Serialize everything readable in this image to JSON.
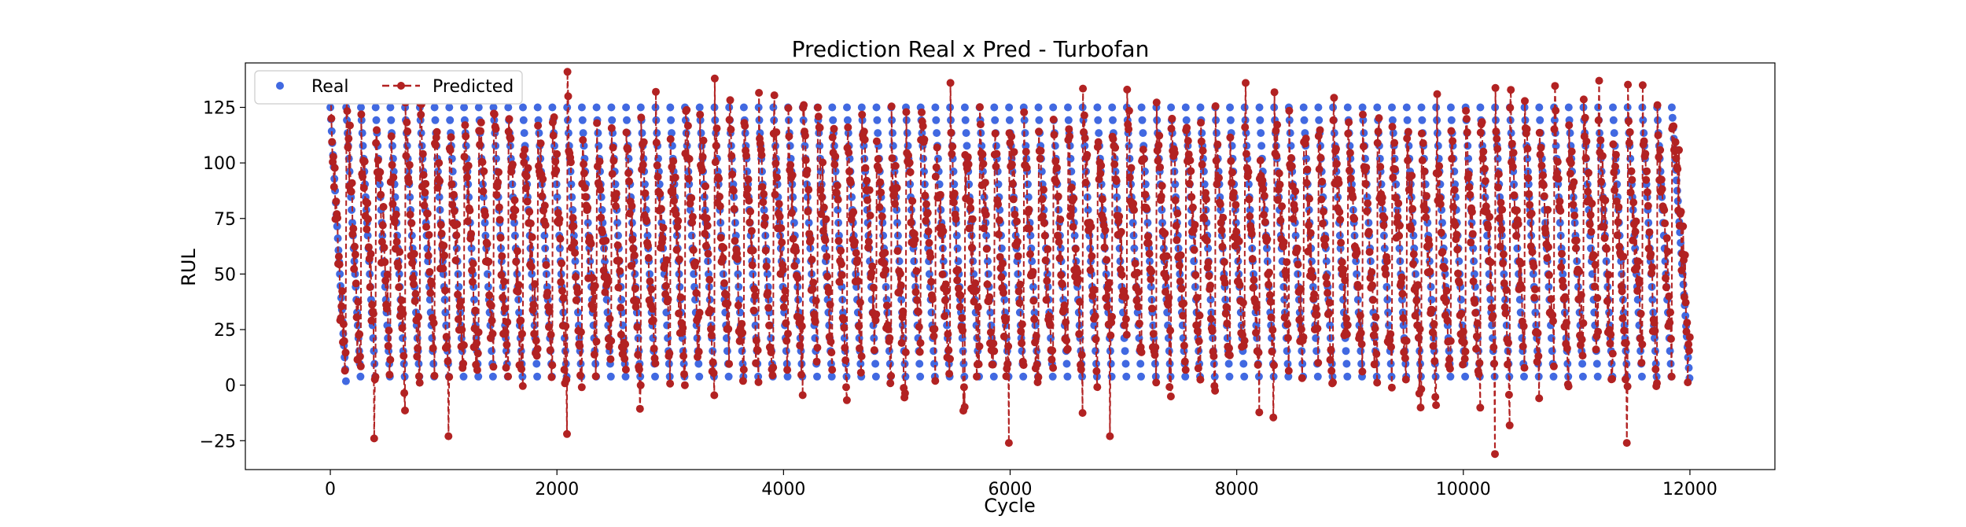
{
  "chart_data": {
    "type": "line",
    "title": "Prediction Real x Pred - Turbofan",
    "xlabel": "Cycle",
    "ylabel": "RUL",
    "xlim": [
      -750,
      12750
    ],
    "ylim": [
      -38,
      145
    ],
    "xticks": [
      0,
      2000,
      4000,
      6000,
      8000,
      10000,
      12000
    ],
    "xtick_labels": [
      "0",
      "2000",
      "4000",
      "6000",
      "8000",
      "10000",
      "12000"
    ],
    "yticks": [
      -25,
      0,
      25,
      50,
      75,
      100,
      125
    ],
    "ytick_labels": [
      "−25",
      "0",
      "25",
      "50",
      "75",
      "100",
      "125"
    ],
    "grid": false,
    "legend": {
      "placement": "top-left",
      "columns": 2
    },
    "series": [
      {
        "name": "Real",
        "style": "markers",
        "color": "#4169e1",
        "description": "sawtooth of RUL: each engine unit starts at 125 (capped) and decreases linearly to 0",
        "unit_boundaries": [
          0,
          140,
          270,
          400,
          530,
          660,
          790,
          920,
          1050,
          1180,
          1310,
          1440,
          1570,
          1700,
          1830,
          1960,
          2090,
          2220,
          2350,
          2480,
          2610,
          2740,
          2870,
          3000,
          3130,
          3260,
          3390,
          3520,
          3650,
          3780,
          3910,
          4040,
          4170,
          4300,
          4430,
          4560,
          4690,
          4820,
          4950,
          5080,
          5210,
          5340,
          5470,
          5600,
          5730,
          5860,
          5990,
          6120,
          6250,
          6380,
          6510,
          6640,
          6770,
          6900,
          7030,
          7160,
          7290,
          7420,
          7550,
          7680,
          7810,
          7940,
          8070,
          8200,
          8330,
          8460,
          8590,
          8720,
          8850,
          8980,
          9110,
          9240,
          9370,
          9500,
          9630,
          9760,
          9890,
          10020,
          10150,
          10280,
          10410,
          10540,
          10670,
          10800,
          10930,
          11060,
          11190,
          11320,
          11450,
          11580,
          11710,
          11840,
          12000
        ],
        "y_max": 125,
        "y_min": 0
      },
      {
        "name": "Predicted",
        "style": "dashed-line-with-markers",
        "color": "#b22222",
        "description": "noisy predictions following each unit's decline",
        "extrema": [
          {
            "x": 40,
            "y": 120
          },
          {
            "x": 380,
            "y": -24
          },
          {
            "x": 1120,
            "y": -23
          },
          {
            "x": 2100,
            "y": 130
          },
          {
            "x": 2100,
            "y": -22
          },
          {
            "x": 2900,
            "y": 132
          },
          {
            "x": 3380,
            "y": 138
          },
          {
            "x": 5510,
            "y": 136
          },
          {
            "x": 6000,
            "y": -26
          },
          {
            "x": 6900,
            "y": -23
          },
          {
            "x": 7000,
            "y": 133
          },
          {
            "x": 8000,
            "y": 136
          },
          {
            "x": 9760,
            "y": 131
          },
          {
            "x": 10250,
            "y": -31
          },
          {
            "x": 11130,
            "y": 137
          },
          {
            "x": 11520,
            "y": -26
          },
          {
            "x": 11650,
            "y": 135
          }
        ]
      }
    ]
  }
}
